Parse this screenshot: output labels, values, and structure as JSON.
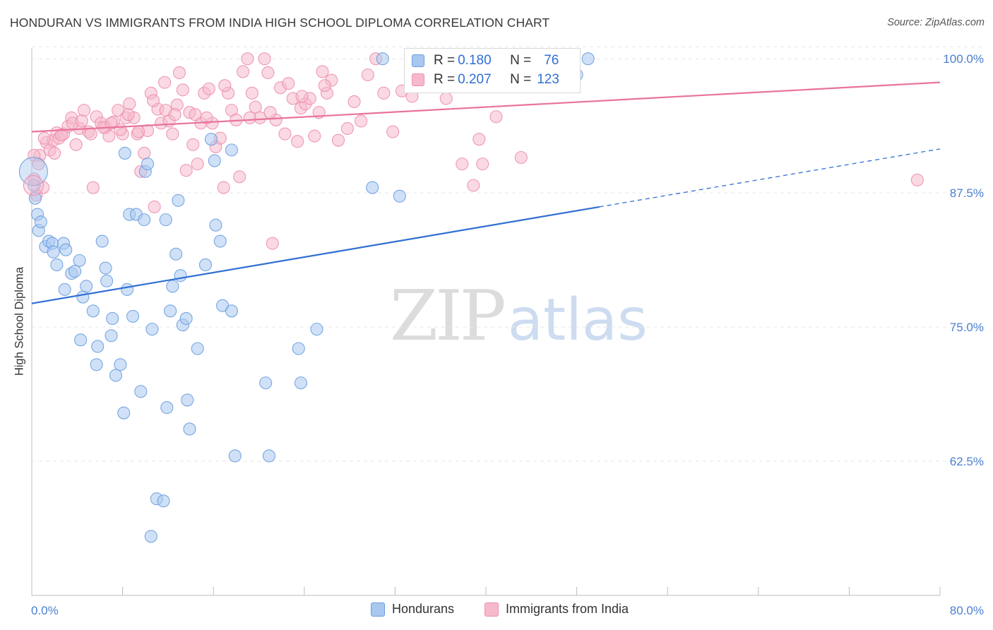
{
  "title": "HONDURAN VS IMMIGRANTS FROM INDIA HIGH SCHOOL DIPLOMA CORRELATION CHART",
  "source": "Source: ZipAtlas.com",
  "watermark": {
    "zip": "ZIP",
    "atlas": "atlas"
  },
  "legend": {
    "rows": [
      {
        "r_label": "R = ",
        "r_value": "0.180",
        "n_label": "N = ",
        "n_value": "76"
      },
      {
        "r_label": "R = ",
        "r_value": "0.207",
        "n_label": "N = ",
        "n_value": "123"
      }
    ]
  },
  "colors": {
    "blue_fill": "#a9c8f0",
    "blue_stroke": "#6b9fdf",
    "blue_line": "#2f6fd3",
    "pink_fill": "#f6b9cc",
    "pink_stroke": "#ec8fae",
    "pink_line": "#e8739a",
    "tick_text": "#4a7fd0",
    "grid": "#e6e6e6"
  },
  "chart_data": {
    "type": "scatter",
    "title": "HONDURAN VS IMMIGRANTS FROM INDIA HIGH SCHOOL DIPLOMA CORRELATION CHART",
    "xlabel": "",
    "ylabel": "High School Diploma",
    "xlim": [
      0,
      80
    ],
    "ylim": [
      50,
      101
    ],
    "x_tick_labels": [
      "0.0%",
      "80.0%"
    ],
    "y_ticks": [
      62.5,
      75.0,
      87.5,
      100.0
    ],
    "y_tick_labels": [
      "62.5%",
      "75.0%",
      "87.5%",
      "100.0%"
    ],
    "grid": true,
    "series": [
      {
        "name": "Hondurans",
        "R": 0.18,
        "N": 76,
        "trend": {
          "x": [
            0,
            50
          ],
          "y": [
            77.2,
            86.2
          ],
          "dashed_to": {
            "x": 80,
            "y": 91.6
          }
        },
        "points": [
          [
            0.2,
            88.2
          ],
          [
            0.3,
            87.0
          ],
          [
            0.5,
            85.5
          ],
          [
            0.6,
            84.0
          ],
          [
            0.8,
            84.8
          ],
          [
            1.2,
            82.5
          ],
          [
            1.5,
            83.0
          ],
          [
            1.8,
            82.8
          ],
          [
            1.9,
            82.0
          ],
          [
            2.2,
            80.8
          ],
          [
            2.8,
            82.8
          ],
          [
            3.0,
            82.2
          ],
          [
            3.5,
            80.0
          ],
          [
            2.9,
            78.5
          ],
          [
            4.2,
            81.2
          ],
          [
            4.8,
            78.8
          ],
          [
            4.5,
            77.8
          ],
          [
            3.8,
            80.2
          ],
          [
            6.2,
            83.0
          ],
          [
            6.5,
            80.5
          ],
          [
            6.6,
            79.3
          ],
          [
            5.4,
            76.5
          ],
          [
            7.1,
            75.8
          ],
          [
            7.0,
            74.2
          ],
          [
            4.3,
            73.8
          ],
          [
            5.8,
            73.2
          ],
          [
            5.7,
            71.5
          ],
          [
            7.4,
            70.5
          ],
          [
            7.8,
            71.5
          ],
          [
            8.1,
            67.0
          ],
          [
            8.2,
            91.2
          ],
          [
            8.4,
            78.5
          ],
          [
            8.6,
            85.5
          ],
          [
            9.2,
            85.5
          ],
          [
            8.9,
            76.0
          ],
          [
            9.6,
            69.0
          ],
          [
            9.9,
            85.0
          ],
          [
            10.0,
            89.5
          ],
          [
            10.2,
            90.2
          ],
          [
            10.6,
            74.8
          ],
          [
            11.0,
            59.0
          ],
          [
            11.6,
            58.8
          ],
          [
            10.5,
            55.5
          ],
          [
            11.8,
            85.0
          ],
          [
            11.9,
            67.5
          ],
          [
            12.2,
            76.5
          ],
          [
            12.4,
            78.8
          ],
          [
            12.7,
            81.8
          ],
          [
            12.9,
            86.8
          ],
          [
            13.1,
            79.8
          ],
          [
            13.3,
            75.2
          ],
          [
            13.6,
            75.8
          ],
          [
            13.7,
            68.2
          ],
          [
            13.9,
            65.5
          ],
          [
            14.6,
            73.0
          ],
          [
            15.3,
            80.8
          ],
          [
            15.8,
            92.5
          ],
          [
            16.1,
            90.5
          ],
          [
            16.2,
            84.5
          ],
          [
            16.6,
            83.0
          ],
          [
            16.8,
            77.0
          ],
          [
            17.6,
            76.5
          ],
          [
            17.6,
            91.5
          ],
          [
            17.9,
            63.0
          ],
          [
            20.6,
            69.8
          ],
          [
            20.9,
            63.0
          ],
          [
            23.5,
            73.0
          ],
          [
            23.7,
            69.8
          ],
          [
            25.1,
            74.8
          ],
          [
            30.0,
            88.0
          ],
          [
            30.9,
            100.0
          ],
          [
            32.4,
            87.2
          ],
          [
            35.0,
            97.8
          ],
          [
            41.0,
            99.0
          ],
          [
            48.0,
            98.5
          ],
          [
            49.0,
            100.0
          ]
        ]
      },
      {
        "name": "Immigrants from India",
        "R": 0.207,
        "N": 123,
        "trend": {
          "x": [
            0,
            80
          ],
          "y": [
            93.2,
            97.8
          ]
        },
        "points": [
          [
            0.2,
            88.8
          ],
          [
            0.4,
            87.3
          ],
          [
            0.7,
            91.0
          ],
          [
            1.0,
            88.0
          ],
          [
            1.3,
            92.2
          ],
          [
            1.6,
            91.5
          ],
          [
            1.9,
            92.4
          ],
          [
            2.2,
            93.1
          ],
          [
            2.4,
            92.6
          ],
          [
            2.8,
            93.0
          ],
          [
            3.2,
            93.7
          ],
          [
            3.5,
            94.5
          ],
          [
            3.9,
            92.0
          ],
          [
            4.2,
            93.5
          ],
          [
            4.6,
            95.2
          ],
          [
            5.0,
            93.2
          ],
          [
            5.4,
            88.0
          ],
          [
            5.7,
            94.6
          ],
          [
            6.1,
            94.0
          ],
          [
            6.5,
            93.6
          ],
          [
            6.8,
            92.8
          ],
          [
            7.2,
            94.1
          ],
          [
            7.6,
            95.2
          ],
          [
            8.0,
            93.0
          ],
          [
            8.3,
            94.5
          ],
          [
            8.6,
            95.8
          ],
          [
            9.0,
            94.5
          ],
          [
            9.3,
            93.0
          ],
          [
            9.6,
            89.5
          ],
          [
            9.9,
            91.2
          ],
          [
            10.2,
            93.3
          ],
          [
            10.5,
            96.8
          ],
          [
            10.8,
            86.2
          ],
          [
            11.1,
            95.3
          ],
          [
            11.4,
            94.0
          ],
          [
            11.8,
            95.2
          ],
          [
            12.1,
            94.2
          ],
          [
            12.4,
            93.0
          ],
          [
            12.8,
            95.7
          ],
          [
            13.0,
            98.7
          ],
          [
            13.3,
            97.1
          ],
          [
            13.6,
            89.6
          ],
          [
            13.9,
            95.0
          ],
          [
            14.2,
            92.0
          ],
          [
            14.6,
            90.2
          ],
          [
            14.9,
            94.0
          ],
          [
            15.2,
            96.8
          ],
          [
            15.6,
            97.2
          ],
          [
            15.9,
            94.0
          ],
          [
            16.2,
            91.8
          ],
          [
            16.6,
            92.6
          ],
          [
            16.9,
            88.0
          ],
          [
            17.3,
            96.8
          ],
          [
            17.6,
            95.2
          ],
          [
            18.0,
            94.3
          ],
          [
            18.3,
            89.0
          ],
          [
            18.6,
            98.8
          ],
          [
            19.0,
            100.0
          ],
          [
            19.4,
            96.8
          ],
          [
            19.7,
            95.5
          ],
          [
            20.1,
            94.5
          ],
          [
            20.5,
            100.0
          ],
          [
            20.8,
            98.7
          ],
          [
            21.2,
            82.8
          ],
          [
            21.5,
            94.3
          ],
          [
            21.9,
            97.3
          ],
          [
            22.3,
            93.0
          ],
          [
            22.6,
            97.7
          ],
          [
            23.0,
            96.3
          ],
          [
            23.4,
            92.3
          ],
          [
            23.7,
            95.4
          ],
          [
            24.1,
            95.8
          ],
          [
            24.5,
            96.3
          ],
          [
            24.9,
            92.8
          ],
          [
            25.3,
            95.0
          ],
          [
            25.6,
            98.8
          ],
          [
            26.0,
            96.8
          ],
          [
            26.4,
            98.0
          ],
          [
            27.0,
            92.4
          ],
          [
            27.8,
            93.5
          ],
          [
            28.4,
            96.0
          ],
          [
            29.0,
            94.2
          ],
          [
            29.6,
            98.5
          ],
          [
            30.3,
            100.0
          ],
          [
            31.0,
            96.8
          ],
          [
            31.8,
            93.2
          ],
          [
            32.6,
            97.0
          ],
          [
            33.5,
            96.5
          ],
          [
            34.6,
            98.5
          ],
          [
            35.6,
            99.0
          ],
          [
            36.5,
            96.3
          ],
          [
            37.3,
            98.5
          ],
          [
            37.9,
            90.2
          ],
          [
            38.9,
            88.2
          ],
          [
            39.4,
            92.5
          ],
          [
            39.7,
            90.2
          ],
          [
            40.9,
            94.6
          ],
          [
            43.1,
            90.8
          ],
          [
            78.0,
            88.7
          ],
          [
            0.2,
            91.0
          ],
          [
            0.6,
            90.2
          ],
          [
            1.1,
            92.6
          ],
          [
            2.0,
            91.2
          ],
          [
            2.6,
            92.9
          ],
          [
            3.6,
            94.0
          ],
          [
            4.4,
            94.2
          ],
          [
            5.2,
            93.0
          ],
          [
            6.3,
            93.6
          ],
          [
            7.0,
            94.0
          ],
          [
            7.8,
            93.4
          ],
          [
            8.5,
            94.8
          ],
          [
            9.4,
            93.2
          ],
          [
            10.7,
            96.1
          ],
          [
            11.7,
            97.8
          ],
          [
            12.6,
            94.8
          ],
          [
            14.4,
            94.8
          ],
          [
            15.4,
            94.5
          ],
          [
            17.0,
            97.5
          ],
          [
            19.2,
            94.5
          ],
          [
            21.0,
            95.0
          ],
          [
            23.8,
            96.5
          ],
          [
            25.8,
            97.5
          ]
        ]
      }
    ]
  }
}
